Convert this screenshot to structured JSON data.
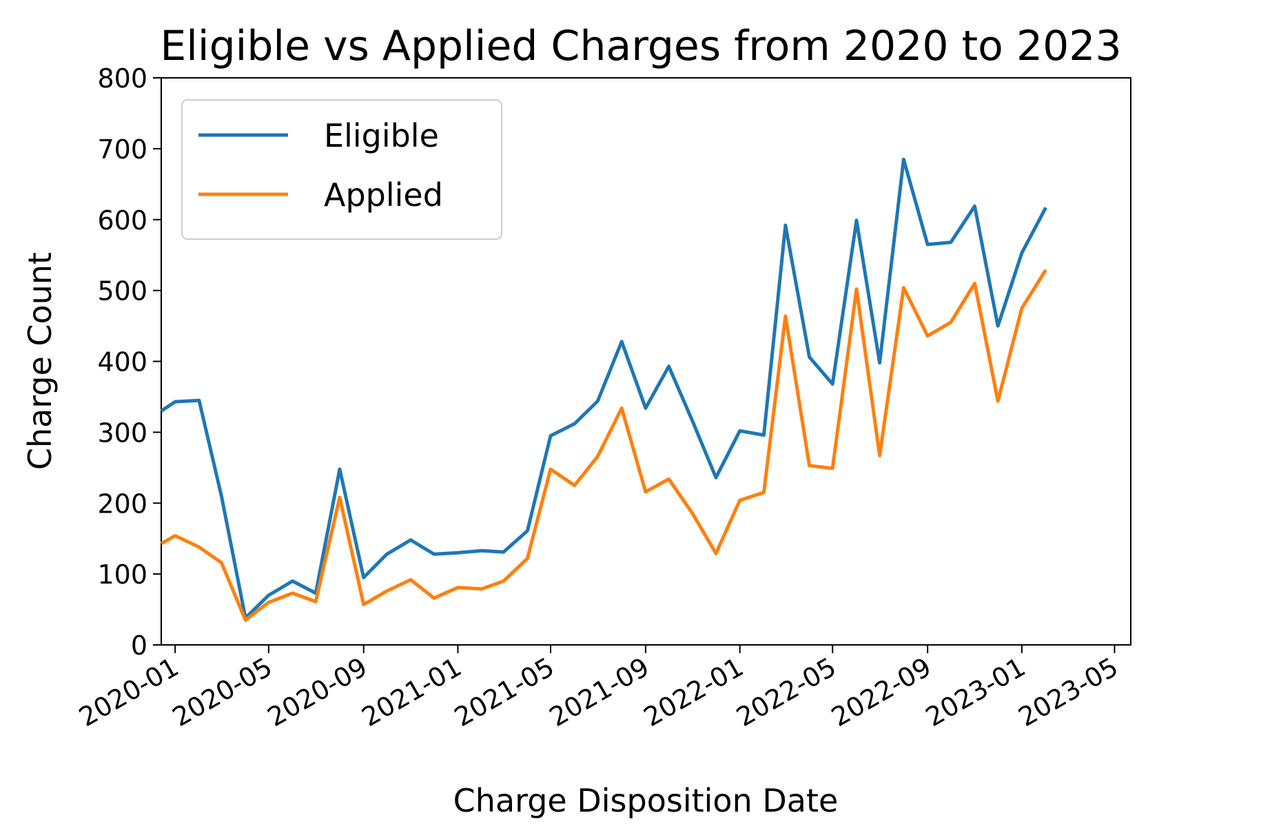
{
  "chart_data": {
    "type": "line",
    "title": "Eligible vs Applied Charges from 2020 to 2023",
    "xlabel": "Charge Disposition Date",
    "ylabel": "Charge Count",
    "ylim": [
      0,
      800
    ],
    "xlim": [
      "2019-12-14",
      "2023-05-22"
    ],
    "y_ticks": [
      0,
      100,
      200,
      300,
      400,
      500,
      600,
      700,
      800
    ],
    "x_ticks": [
      "2020-01",
      "2020-05",
      "2020-09",
      "2021-01",
      "2021-05",
      "2021-09",
      "2022-01",
      "2022-05",
      "2022-09",
      "2023-01",
      "2023-05"
    ],
    "x_tick_dates": [
      "2020-01-01",
      "2020-05-01",
      "2020-09-01",
      "2021-01-01",
      "2021-05-01",
      "2021-09-01",
      "2022-01-01",
      "2022-05-01",
      "2022-09-01",
      "2023-01-01",
      "2023-05-01"
    ],
    "grid": false,
    "legend_position": "upper-left",
    "x": [
      "2019-12-01",
      "2020-01-01",
      "2020-02-01",
      "2020-03-01",
      "2020-04-01",
      "2020-05-01",
      "2020-06-01",
      "2020-07-01",
      "2020-08-01",
      "2020-09-01",
      "2020-10-01",
      "2020-11-01",
      "2020-12-01",
      "2021-01-01",
      "2021-02-01",
      "2021-03-01",
      "2021-04-01",
      "2021-05-01",
      "2021-06-01",
      "2021-07-01",
      "2021-08-01",
      "2021-09-01",
      "2021-10-01",
      "2021-11-01",
      "2021-12-01",
      "2022-01-01",
      "2022-02-01",
      "2022-03-01",
      "2022-04-01",
      "2022-05-01",
      "2022-06-01",
      "2022-07-01",
      "2022-08-01",
      "2022-09-01",
      "2022-10-01",
      "2022-11-01",
      "2022-12-01",
      "2023-01-01",
      "2023-02-01"
    ],
    "series": [
      {
        "name": "Eligible",
        "color": "#1f77b4",
        "values": [
          330,
          343,
          345,
          210,
          38,
          70,
          90,
          73,
          248,
          95,
          128,
          148,
          128,
          130,
          133,
          131,
          161,
          295,
          312,
          344,
          428,
          334,
          393,
          315,
          236,
          302,
          296,
          592,
          406,
          368,
          599,
          398,
          685,
          565,
          568,
          619,
          450,
          553,
          617
        ]
      },
      {
        "name": "Applied",
        "color": "#ff7f0e",
        "values": [
          143,
          154,
          138,
          116,
          35,
          60,
          73,
          61,
          208,
          57,
          76,
          92,
          66,
          81,
          79,
          90,
          122,
          248,
          225,
          266,
          334,
          216,
          234,
          185,
          129,
          204,
          215,
          464,
          253,
          249,
          502,
          267,
          504,
          436,
          455,
          510,
          344,
          475,
          529
        ]
      }
    ]
  }
}
